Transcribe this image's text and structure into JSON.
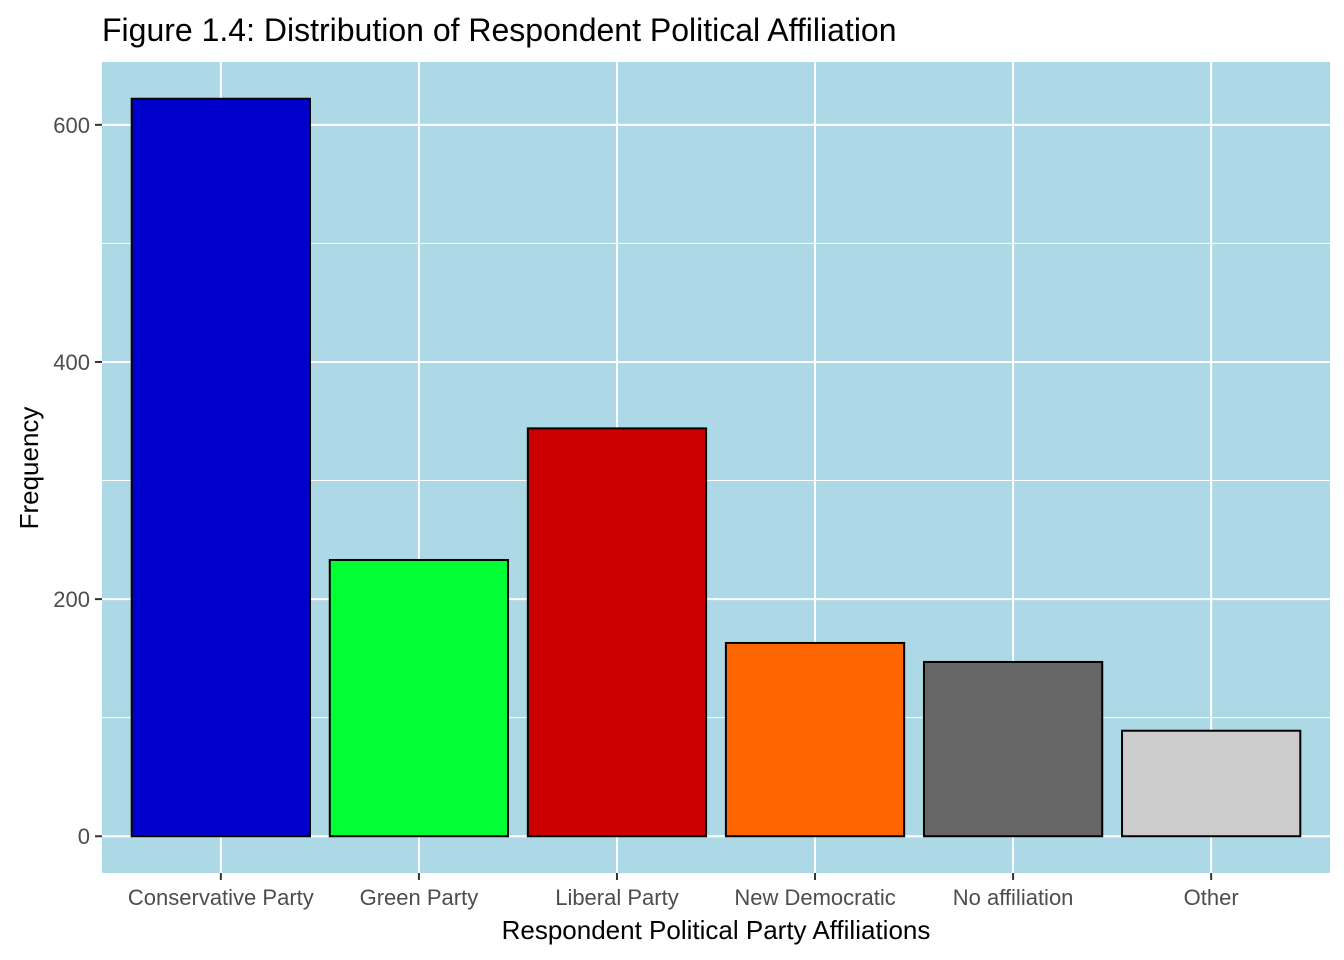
{
  "chart_data": {
    "type": "bar",
    "title": "Figure 1.4: Distribution of Respondent Political Affiliation",
    "xlabel": "Respondent Political Party Affiliations",
    "ylabel": "Frequency",
    "categories": [
      "Conservative Party",
      "Green Party",
      "Liberal Party",
      "New Democratic",
      "No affiliation",
      "Other"
    ],
    "values": [
      622,
      233,
      344,
      163,
      147,
      89
    ],
    "bar_colors": [
      "#0000CC",
      "#00FF33",
      "#CC0000",
      "#FF6600",
      "#666666",
      "#CCCCCC"
    ],
    "bar_outline_color": "#000000",
    "panel_background": "#ADD8E6",
    "grid_color": "#FFFFFF",
    "grid": true,
    "legend": "none",
    "yticks": [
      0,
      200,
      400,
      600
    ],
    "ylim": [
      -31,
      653
    ]
  }
}
